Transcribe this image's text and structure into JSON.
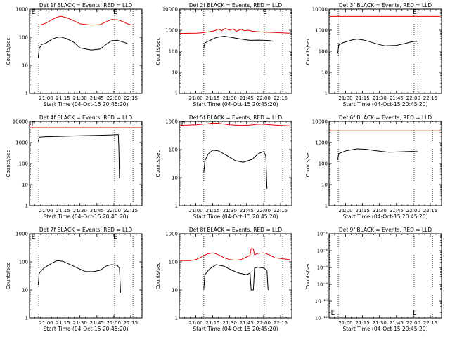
{
  "figure": {
    "background": "#ffffff"
  },
  "chart_data": [
    {
      "type": "line",
      "title": "Det 1f BLACK = Events, RED = LLD",
      "xlabel": "Start Time (04-Oct-15 20:45:20)",
      "ylabel": "Counts/sec",
      "yscale": "log",
      "ylim": [
        1,
        1000
      ],
      "yticks": [
        "1",
        "10",
        "100",
        "1000"
      ],
      "xticks": [
        "21:00",
        "21:15",
        "21:30",
        "21:45",
        "22:00",
        "22:15"
      ],
      "xlim": [
        "20:45:20",
        "22:25:00"
      ],
      "vlines": [
        "20:53:30",
        "22:00:40",
        "22:17:00"
      ],
      "markers": [
        {
          "text": "E",
          "x": "20:47:00",
          "y": 1000
        },
        {
          "text": "E",
          "x": "21:59:30",
          "y": 1000
        }
      ],
      "grid": false,
      "series": [
        {
          "name": "LLD",
          "color": "#e00000",
          "x": [
            "20:53",
            "20:56",
            "21:00",
            "21:05",
            "21:10",
            "21:13",
            "21:18",
            "21:25",
            "21:30",
            "21:40",
            "21:48",
            "21:53",
            "21:58",
            "22:03",
            "22:08",
            "22:12",
            "22:16"
          ],
          "y": [
            270,
            280,
            320,
            420,
            520,
            560,
            500,
            380,
            300,
            270,
            280,
            350,
            430,
            420,
            360,
            300,
            270
          ]
        },
        {
          "name": "Events",
          "color": "#000000",
          "x": [
            "20:53",
            "20:54",
            "20:56",
            "21:00",
            "21:05",
            "21:10",
            "21:13",
            "21:18",
            "21:25",
            "21:30",
            "21:40",
            "21:48",
            "21:53",
            "21:58",
            "22:03",
            "22:08",
            "22:12"
          ],
          "y": [
            18,
            40,
            55,
            62,
            85,
            100,
            102,
            90,
            65,
            42,
            35,
            38,
            55,
            75,
            78,
            68,
            60
          ]
        }
      ]
    },
    {
      "type": "line",
      "title": "Det 2f BLACK = Events, RED = LLD",
      "xlabel": "Start Time (04-Oct-15 20:45:20)",
      "ylabel": "Counts/sec",
      "yscale": "log",
      "ylim": [
        1,
        10000
      ],
      "yticks": [
        "1",
        "10",
        "100",
        "1000",
        "10000"
      ],
      "xticks": [
        "21:00",
        "21:15",
        "21:30",
        "21:45",
        "22:00",
        "22:15"
      ],
      "xlim": [
        "20:45:20",
        "22:25:00"
      ],
      "vlines": [
        "21:07:00",
        "22:00:40",
        "22:17:00"
      ],
      "markers": [
        {
          "text": "E",
          "x": "21:59:30",
          "y": 10000
        }
      ],
      "grid": false,
      "series": [
        {
          "name": "LLD",
          "color": "#e00000",
          "x": [
            "20:46",
            "21:00",
            "21:05",
            "21:10",
            "21:15",
            "21:18",
            "21:20",
            "21:23",
            "21:26",
            "21:30",
            "21:33",
            "21:36",
            "21:40",
            "21:43",
            "21:46",
            "21:50",
            "21:55",
            "22:00",
            "22:10",
            "22:23"
          ],
          "y": [
            700,
            720,
            750,
            820,
            900,
            1000,
            1150,
            950,
            1200,
            1000,
            1150,
            900,
            1100,
            950,
            1000,
            900,
            850,
            820,
            780,
            720
          ]
        },
        {
          "name": "Events",
          "color": "#000000",
          "x": [
            "21:07",
            "21:08",
            "21:12",
            "21:18",
            "21:25",
            "21:32",
            "21:40",
            "21:48",
            "21:55",
            "22:01",
            "22:05",
            "22:09"
          ],
          "y": [
            140,
            250,
            320,
            450,
            520,
            450,
            380,
            330,
            340,
            330,
            320,
            300
          ]
        }
      ]
    },
    {
      "type": "line",
      "title": "Det 3f BLACK = Events, RED = LLD",
      "xlabel": "Start Time (04-Oct-15 20:45:20)",
      "ylabel": "Counts/sec",
      "yscale": "log",
      "ylim": [
        1,
        10000
      ],
      "yticks": [
        "1",
        "10",
        "100",
        "1000",
        "10000"
      ],
      "xticks": [
        "21:00",
        "21:15",
        "21:30",
        "21:45",
        "22:00",
        "22:15"
      ],
      "xlim": [
        "20:45:20",
        "22:25:00"
      ],
      "vlines": [
        "20:53:30",
        "22:00:40",
        "22:04:00"
      ],
      "markers": [
        {
          "text": "E",
          "x": "21:59:30",
          "y": 10000
        }
      ],
      "grid": false,
      "series": [
        {
          "name": "LLD",
          "color": "#e00000",
          "x": [
            "20:46",
            "22:24"
          ],
          "y": [
            4500,
            4500
          ]
        },
        {
          "name": "Events",
          "color": "#000000",
          "x": [
            "20:53",
            "20:54",
            "20:58",
            "21:05",
            "21:10",
            "21:15",
            "21:20",
            "21:28",
            "21:35",
            "21:45",
            "21:52",
            "21:58",
            "22:02",
            "22:04"
          ],
          "y": [
            80,
            200,
            260,
            340,
            380,
            350,
            300,
            220,
            180,
            190,
            230,
            280,
            300,
            300
          ]
        }
      ]
    },
    {
      "type": "line",
      "title": "Det 4f BLACK = Events, RED = LLD",
      "xlabel": "Start Time (04-Oct-15 20:45:20)",
      "ylabel": "Counts/sec",
      "yscale": "log",
      "ylim": [
        1,
        10000
      ],
      "yticks": [
        "1",
        "10",
        "100",
        "1000",
        "10000"
      ],
      "xticks": [
        "21:00",
        "21:15",
        "21:30",
        "21:45",
        "22:00",
        "22:15"
      ],
      "xlim": [
        "20:45:20",
        "22:25:00"
      ],
      "vlines": [
        "20:53:30",
        "22:00:40",
        "22:17:00"
      ],
      "markers": [
        {
          "text": "E",
          "x": "20:47:00",
          "y": 10000
        }
      ],
      "grid": false,
      "series": [
        {
          "name": "LLD",
          "color": "#e00000",
          "x": [
            "20:46",
            "22:24"
          ],
          "y": [
            5000,
            5000
          ]
        },
        {
          "name": "Events",
          "color": "#000000",
          "x": [
            "20:53",
            "20:54",
            "21:00",
            "21:15",
            "21:30",
            "21:45",
            "21:58",
            "22:04",
            "22:04:30",
            "22:05"
          ],
          "y": [
            1100,
            1800,
            1900,
            2000,
            2100,
            2200,
            2300,
            2400,
            500,
            20
          ]
        }
      ]
    },
    {
      "type": "line",
      "title": "Det 5f BLACK = Events, RED = LLD",
      "xlabel": "Start Time (04-Oct-15 20:45:20)",
      "ylabel": "Counts/sec",
      "yscale": "log",
      "ylim": [
        1,
        1000
      ],
      "yticks": [
        "1",
        "10",
        "100",
        "1000"
      ],
      "xticks": [
        "21:00",
        "21:15",
        "21:30",
        "21:45",
        "22:00",
        "22:15"
      ],
      "xlim": [
        "20:45:20",
        "22:25:00"
      ],
      "vlines": [
        "21:07:00",
        "22:00:40",
        "22:17:00"
      ],
      "markers": [
        {
          "text": "E",
          "x": "20:47:00",
          "y": 1000
        },
        {
          "text": "E",
          "x": "21:59:30",
          "y": 1000
        }
      ],
      "grid": false,
      "series": [
        {
          "name": "LLD",
          "color": "#e00000",
          "x": [
            "20:46",
            "21:00",
            "21:10",
            "21:15",
            "21:20",
            "21:30",
            "21:40",
            "21:48",
            "21:55",
            "22:00",
            "22:10",
            "22:23"
          ],
          "y": [
            720,
            760,
            820,
            880,
            860,
            760,
            720,
            740,
            800,
            800,
            740,
            700
          ]
        },
        {
          "name": "Events",
          "color": "#000000",
          "x": [
            "21:07",
            "21:08",
            "21:11",
            "21:15",
            "21:20",
            "21:28",
            "21:35",
            "21:42",
            "21:50",
            "21:55",
            "22:00",
            "22:02",
            "22:03"
          ],
          "y": [
            15,
            40,
            70,
            95,
            90,
            60,
            40,
            35,
            45,
            70,
            85,
            60,
            4
          ]
        }
      ]
    },
    {
      "type": "line",
      "title": "Det 6f BLACK = Events, RED = LLD",
      "xlabel": "Start Time (04-Oct-15 20:45:20)",
      "ylabel": "Counts/sec",
      "yscale": "log",
      "ylim": [
        1,
        10000
      ],
      "yticks": [
        "1",
        "10",
        "100",
        "1000",
        "10000"
      ],
      "xticks": [
        "21:00",
        "21:15",
        "21:30",
        "21:45",
        "22:00",
        "22:15"
      ],
      "xlim": [
        "20:45:20",
        "22:25:00"
      ],
      "vlines": [
        "20:53:30",
        "22:00:40",
        "22:17:00"
      ],
      "markers": [],
      "grid": false,
      "series": [
        {
          "name": "LLD",
          "color": "#e00000",
          "x": [
            "20:46",
            "22:24"
          ],
          "y": [
            3600,
            3600
          ]
        },
        {
          "name": "Events",
          "color": "#000000",
          "x": [
            "20:53",
            "20:54",
            "21:00",
            "21:10",
            "21:18",
            "21:28",
            "21:38",
            "21:48",
            "21:58",
            "22:04"
          ],
          "y": [
            150,
            300,
            400,
            500,
            480,
            400,
            350,
            360,
            380,
            370
          ]
        }
      ]
    },
    {
      "type": "line",
      "title": "Det 7f BLACK = Events, RED = LLD",
      "xlabel": "Start Time (04-Oct-15 20:45:20)",
      "ylabel": "Counts/sec",
      "yscale": "log",
      "ylim": [
        1,
        1000
      ],
      "yticks": [
        "1",
        "10",
        "100",
        "1000"
      ],
      "xticks": [
        "21:00",
        "21:15",
        "21:30",
        "21:45",
        "22:00",
        "22:15"
      ],
      "xlim": [
        "20:45:20",
        "22:25:00"
      ],
      "vlines": [
        "20:53:30",
        "22:00:40",
        "22:17:00"
      ],
      "markers": [
        {
          "text": "E",
          "x": "20:47:00",
          "y": 1000
        },
        {
          "text": "E",
          "x": "21:59:30",
          "y": 1000
        }
      ],
      "grid": false,
      "series": [
        {
          "name": "Events",
          "color": "#000000",
          "x": [
            "20:53",
            "20:54",
            "20:58",
            "21:05",
            "21:10",
            "21:15",
            "21:20",
            "21:28",
            "21:35",
            "21:42",
            "21:48",
            "21:53",
            "21:58",
            "22:03",
            "22:05",
            "22:06"
          ],
          "y": [
            15,
            40,
            60,
            90,
            110,
            105,
            85,
            60,
            45,
            45,
            50,
            70,
            80,
            75,
            60,
            8
          ]
        }
      ]
    },
    {
      "type": "line",
      "title": "Det 8f BLACK = Events, RED = LLD",
      "xlabel": "Start Time (04-Oct-15 20:45:20)",
      "ylabel": "Counts/sec",
      "yscale": "log",
      "ylim": [
        1,
        1000
      ],
      "yticks": [
        "1",
        "10",
        "100",
        "1000"
      ],
      "xticks": [
        "21:00",
        "21:15",
        "21:30",
        "21:45",
        "22:00",
        "22:15"
      ],
      "xlim": [
        "20:45:20",
        "22:25:00"
      ],
      "vlines": [
        "21:07:00",
        "22:00:40",
        "22:17:00"
      ],
      "markers": [],
      "grid": false,
      "series": [
        {
          "name": "LLD",
          "color": "#e00000",
          "x": [
            "20:46",
            "20:55",
            "21:00",
            "21:05",
            "21:10",
            "21:15",
            "21:20",
            "21:25",
            "21:30",
            "21:35",
            "21:40",
            "21:45",
            "21:48",
            "21:49",
            "21:51",
            "21:52",
            "21:55",
            "22:00",
            "22:05",
            "22:10",
            "22:23"
          ],
          "y": [
            110,
            110,
            120,
            150,
            190,
            210,
            180,
            140,
            120,
            115,
            120,
            150,
            170,
            300,
            290,
            180,
            200,
            210,
            180,
            140,
            120
          ]
        },
        {
          "name": "Events",
          "color": "#000000",
          "x": [
            "21:07",
            "21:08",
            "21:12",
            "21:18",
            "21:25",
            "21:32",
            "21:38",
            "21:45",
            "21:48",
            "21:49",
            "21:51",
            "21:52",
            "21:55",
            "22:00",
            "22:03",
            "22:04"
          ],
          "y": [
            10,
            35,
            55,
            80,
            70,
            50,
            40,
            35,
            40,
            10,
            10,
            60,
            65,
            60,
            50,
            10
          ]
        }
      ]
    },
    {
      "type": "line",
      "title": "Det 9f BLACK = Events, RED = LLD",
      "xlabel": "Start Time (04-Oct-15 20:45:20)",
      "ylabel": "Counts/sec",
      "yscale": "log",
      "ylim": [
        1e-12,
        0.01
      ],
      "yticks": [
        "10⁻¹²",
        "10⁻¹⁰",
        "10⁻⁸",
        "10⁻⁶",
        "10⁻⁴",
        "10⁻²"
      ],
      "xticks": [
        "21:00",
        "21:15",
        "21:30",
        "21:45",
        "22:00",
        "22:15"
      ],
      "xlim": [
        "20:45:20",
        "22:25:00"
      ],
      "vlines": [
        "20:53:30",
        "22:00:40",
        "22:17:00"
      ],
      "markers": [
        {
          "text": "E",
          "x": "20:47:00",
          "y": 1e-11
        },
        {
          "text": "E",
          "x": "21:59:30",
          "y": 1e-11
        }
      ],
      "grid": false,
      "series": []
    }
  ]
}
